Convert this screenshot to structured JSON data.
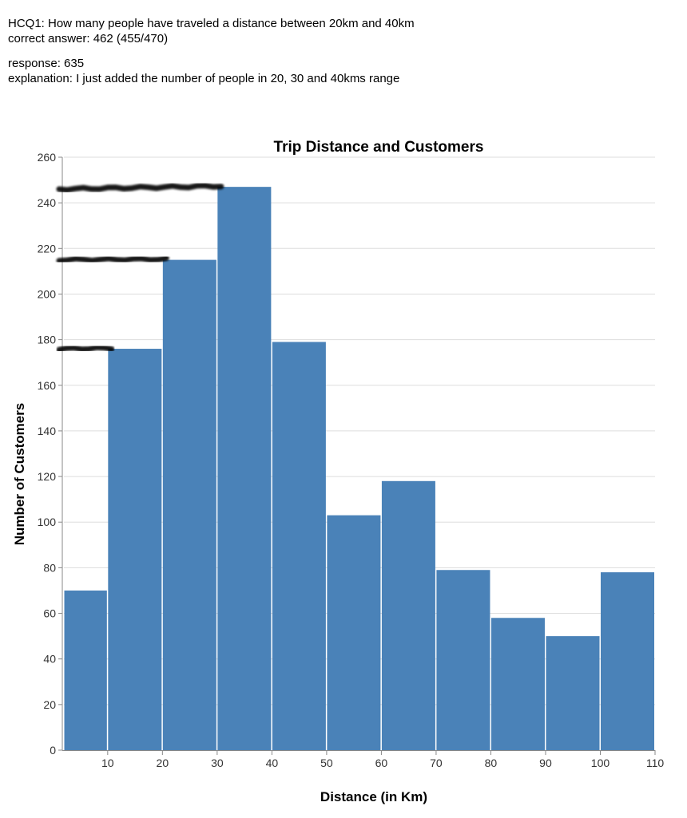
{
  "annotation": {
    "question": "HCQ1: How many people have traveled a distance between 20km and 40km",
    "correct_answer": "correct answer: 462 (455/470)",
    "response": "response: 635",
    "explanation": "explanation: I just added the number of people in 20, 30 and 40kms range"
  },
  "colors": {
    "bar": "#4a82b8",
    "grid": "#dddddd",
    "axis": "#888888",
    "scribble": "#000000"
  },
  "chart_data": {
    "type": "bar",
    "title": "Trip Distance and Customers",
    "xlabel": "Distance (in Km)",
    "ylabel": "Number of Customers",
    "x_ticks": [
      10,
      20,
      30,
      40,
      50,
      60,
      70,
      80,
      90,
      100,
      110
    ],
    "y_ticks": [
      0,
      20,
      40,
      60,
      80,
      100,
      120,
      140,
      160,
      180,
      200,
      220,
      240,
      260
    ],
    "xlim": [
      2,
      110
    ],
    "ylim": [
      0,
      260
    ],
    "grid": true,
    "bins": [
      {
        "x0": 2,
        "x1": 10,
        "value": 70
      },
      {
        "x0": 10,
        "x1": 20,
        "value": 176
      },
      {
        "x0": 20,
        "x1": 30,
        "value": 215
      },
      {
        "x0": 30,
        "x1": 40,
        "value": 247
      },
      {
        "x0": 40,
        "x1": 50,
        "value": 179
      },
      {
        "x0": 50,
        "x1": 60,
        "value": 103
      },
      {
        "x0": 60,
        "x1": 70,
        "value": 118
      },
      {
        "x0": 70,
        "x1": 80,
        "value": 79
      },
      {
        "x0": 80,
        "x1": 90,
        "value": 58
      },
      {
        "x0": 90,
        "x1": 100,
        "value": 50
      },
      {
        "x0": 100,
        "x1": 110,
        "value": 78
      }
    ],
    "handwritten_marks": [
      {
        "y": 246,
        "x_end": 30
      },
      {
        "y": 215,
        "x_end": 20
      },
      {
        "y": 176,
        "x_end": 10
      }
    ]
  }
}
